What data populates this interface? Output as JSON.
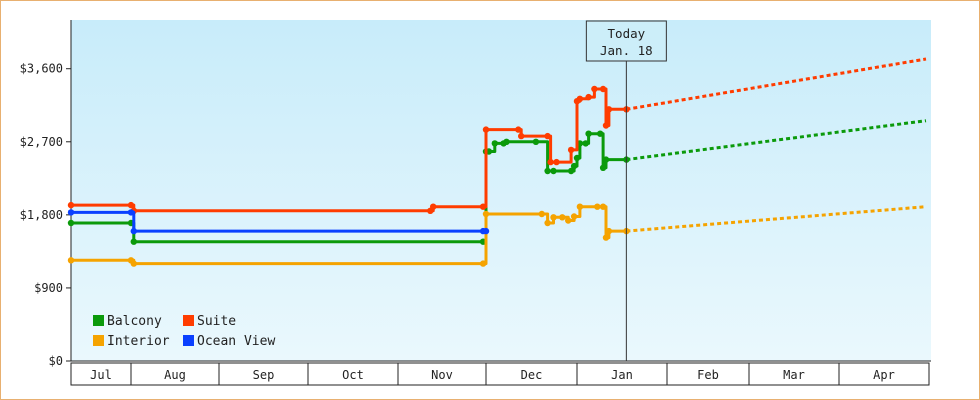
{
  "chart_data": {
    "type": "line",
    "today": {
      "label": "Today",
      "date": "Jan. 18"
    },
    "y_axis": {
      "ylim": [
        0,
        4200
      ],
      "ticks": [
        0,
        900,
        1800,
        2700,
        3600
      ],
      "tick_labels": [
        "$0",
        "$900",
        "$1,800",
        "$2,700",
        "$3,600"
      ]
    },
    "x_axis": {
      "months": [
        "Jul",
        "Aug",
        "Sep",
        "Oct",
        "Nov",
        "Dec",
        "Jan",
        "Feb",
        "Mar",
        "Apr"
      ]
    },
    "grid": false,
    "legend_placement": "bottom-left",
    "series": [
      {
        "name": "Balcony",
        "color": "#0b9a0b",
        "history": [
          [
            "Jul 1",
            1700
          ],
          [
            "Aug 1",
            1700
          ],
          [
            "Aug 2",
            1470
          ],
          [
            "Nov 30",
            1470
          ],
          [
            "Dec 1",
            2580
          ],
          [
            "Dec 2",
            2580
          ],
          [
            "Dec 4",
            2680
          ],
          [
            "Dec 7",
            2680
          ],
          [
            "Dec 8",
            2700
          ],
          [
            "Dec 18",
            2700
          ],
          [
            "Dec 22",
            2340
          ],
          [
            "Dec 24",
            2340
          ],
          [
            "Dec 30",
            2340
          ],
          [
            "Dec 31",
            2400
          ],
          [
            "Jan 1",
            2500
          ],
          [
            "Jan 2",
            2680
          ],
          [
            "Jan 4",
            2680
          ],
          [
            "Jan 5",
            2800
          ],
          [
            "Jan 9",
            2800
          ],
          [
            "Jan 10",
            2380
          ],
          [
            "Jan 11",
            2480
          ],
          [
            "Jan 18",
            2480
          ]
        ],
        "projection": [
          [
            "Jan 18",
            2480
          ],
          [
            "Apr 30",
            2960
          ]
        ]
      },
      {
        "name": "Suite",
        "color": "#ff3c00",
        "history": [
          [
            "Jul 1",
            1920
          ],
          [
            "Aug 1",
            1920
          ],
          [
            "Aug 2",
            1850
          ],
          [
            "Nov 12",
            1850
          ],
          [
            "Nov 13",
            1900
          ],
          [
            "Nov 30",
            1900
          ],
          [
            "Dec 1",
            2850
          ],
          [
            "Dec 12",
            2850
          ],
          [
            "Dec 13",
            2770
          ],
          [
            "Dec 22",
            2770
          ],
          [
            "Dec 23",
            2450
          ],
          [
            "Dec 25",
            2450
          ],
          [
            "Dec 30",
            2600
          ],
          [
            "Jan 1",
            3200
          ],
          [
            "Jan 2",
            3230
          ],
          [
            "Jan 5",
            3250
          ],
          [
            "Jan 7",
            3350
          ],
          [
            "Jan 10",
            3350
          ],
          [
            "Jan 11",
            2900
          ],
          [
            "Jan 12",
            3100
          ],
          [
            "Jan 18",
            3100
          ]
        ],
        "projection": [
          [
            "Jan 18",
            3100
          ],
          [
            "Apr 30",
            3720
          ]
        ]
      },
      {
        "name": "Interior",
        "color": "#f5a300",
        "history": [
          [
            "Jul 1",
            1240
          ],
          [
            "Aug 1",
            1240
          ],
          [
            "Aug 2",
            1200
          ],
          [
            "Nov 30",
            1200
          ],
          [
            "Dec 1",
            1810
          ],
          [
            "Dec 20",
            1810
          ],
          [
            "Dec 22",
            1700
          ],
          [
            "Dec 24",
            1770
          ],
          [
            "Dec 27",
            1770
          ],
          [
            "Dec 29",
            1730
          ],
          [
            "Dec 31",
            1780
          ],
          [
            "Jan 2",
            1900
          ],
          [
            "Jan 8",
            1900
          ],
          [
            "Jan 10",
            1900
          ],
          [
            "Jan 11",
            1520
          ],
          [
            "Jan 12",
            1600
          ],
          [
            "Jan 18",
            1600
          ]
        ],
        "projection": [
          [
            "Jan 18",
            1600
          ],
          [
            "Apr 30",
            1900
          ]
        ]
      },
      {
        "name": "Ocean View",
        "color": "#0a40ff",
        "history": [
          [
            "Jul 1",
            1830
          ],
          [
            "Aug 1",
            1830
          ],
          [
            "Aug 2",
            1600
          ],
          [
            "Nov 30",
            1600
          ],
          [
            "Dec 1",
            1600
          ]
        ],
        "projection": []
      }
    ]
  }
}
